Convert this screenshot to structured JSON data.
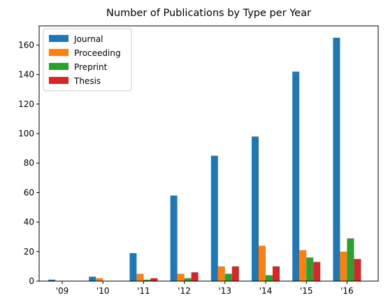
{
  "chart_data": {
    "type": "bar",
    "title": "Number of Publications by Type per Year",
    "xlabel": "",
    "ylabel": "",
    "categories": [
      "'09",
      "'10",
      "'11",
      "'12",
      "'13",
      "'14",
      "'15",
      "'16"
    ],
    "series": [
      {
        "name": "Journal",
        "color": "#1f77b4",
        "values": [
          1,
          3,
          19,
          58,
          85,
          98,
          142,
          165
        ]
      },
      {
        "name": "Proceeding",
        "color": "#ff7f0e",
        "values": [
          0,
          2,
          5,
          5,
          10,
          24,
          21,
          20
        ]
      },
      {
        "name": "Preprint",
        "color": "#2ca02c",
        "values": [
          0,
          0,
          1,
          2,
          5,
          4,
          16,
          29
        ]
      },
      {
        "name": "Thesis",
        "color": "#d62728",
        "values": [
          0,
          0,
          2,
          6,
          10,
          10,
          13,
          15
        ]
      }
    ],
    "ylim": [
      0,
      173
    ],
    "yticks": [
      0,
      20,
      40,
      60,
      80,
      100,
      120,
      140,
      160
    ],
    "legend": "top-left",
    "grid": false
  }
}
